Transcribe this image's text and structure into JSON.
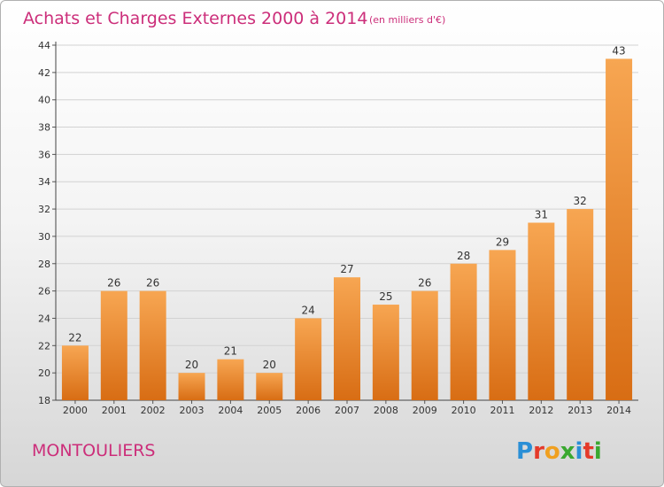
{
  "chart_data": {
    "type": "bar",
    "title": "Achats et Charges Externes 2000 à 2014",
    "subtitle": "(en milliers d'€)",
    "categories": [
      "2000",
      "2001",
      "2002",
      "2003",
      "2004",
      "2005",
      "2006",
      "2007",
      "2008",
      "2009",
      "2010",
      "2011",
      "2012",
      "2013",
      "2014"
    ],
    "values": [
      22,
      26,
      26,
      20,
      21,
      20,
      24,
      27,
      25,
      26,
      28,
      29,
      31,
      32,
      43
    ],
    "ylim": [
      18,
      44
    ],
    "yticks": [
      18,
      20,
      22,
      24,
      26,
      28,
      30,
      32,
      34,
      36,
      38,
      40,
      42,
      44
    ],
    "xlabel": "",
    "ylabel": "",
    "grid": true,
    "bar_color": "#f08a28"
  },
  "footer": {
    "commune": "MONTOULIERS",
    "logo_letters": [
      "P",
      "r",
      "o",
      "x",
      "i",
      "t",
      "i"
    ],
    "logo_colors": [
      "#2a8fd6",
      "#e53a2a",
      "#f0a020",
      "#3aa830",
      "#2a8fd6",
      "#e53a2a",
      "#3aa830"
    ]
  }
}
